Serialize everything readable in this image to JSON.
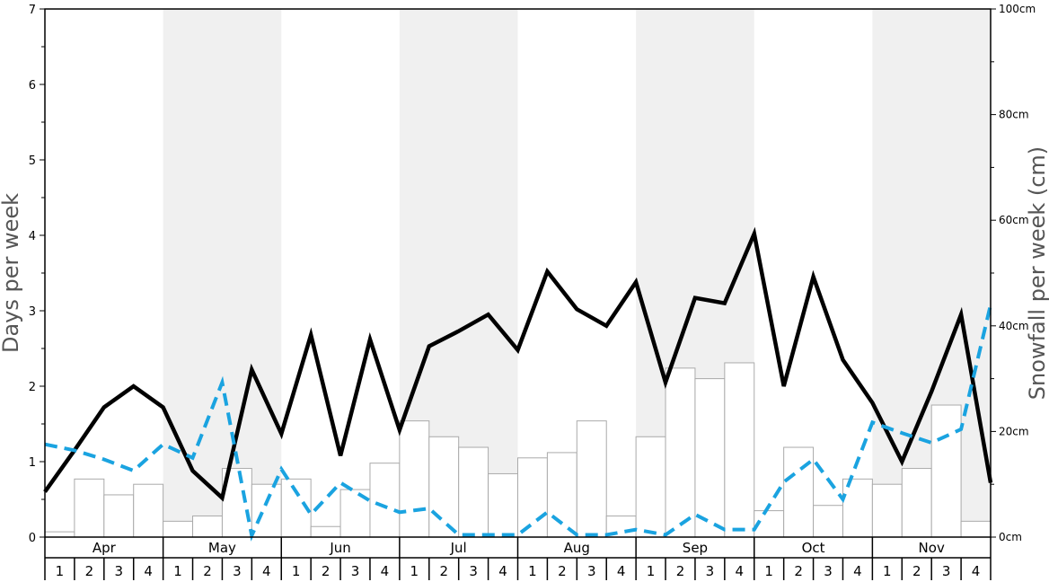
{
  "chart_data": {
    "type": "bar",
    "title": "",
    "ylabel_left": "Days per week",
    "ylabel_right": "Snowfall per week (cm)",
    "left_ylim": [
      0,
      7
    ],
    "left_yticks": [
      "0",
      "1",
      "2",
      "3",
      "4",
      "5",
      "6",
      "7"
    ],
    "right_ylim": [
      0,
      100
    ],
    "right_yticks": [
      "0cm",
      "20cm",
      "40cm",
      "60cm",
      "80cm",
      "100cm"
    ],
    "months": [
      "Apr",
      "May",
      "Jun",
      "Jul",
      "Aug",
      "Sep",
      "Oct",
      "Nov"
    ],
    "weeks_per_month": [
      "1",
      "2",
      "3",
      "4"
    ],
    "grid": false,
    "shading": "alternating-month",
    "series": [
      {
        "kind": "bar",
        "axis": "right",
        "units": "cm",
        "values": [
          1,
          11,
          8,
          10,
          3,
          4,
          13,
          10,
          11,
          2,
          9,
          14,
          22,
          19,
          17,
          12,
          15,
          16,
          22,
          4,
          19,
          32,
          30,
          33,
          5,
          17,
          6,
          11,
          10,
          13,
          25,
          3
        ]
      },
      {
        "kind": "line",
        "axis": "left",
        "style": "solid",
        "color": "#000000",
        "values": [
          0.6,
          1.15,
          1.72,
          2.0,
          1.72,
          0.88,
          0.52,
          2.22,
          1.37,
          2.68,
          1.08,
          2.62,
          1.42,
          2.53,
          2.73,
          2.95,
          2.48,
          3.52,
          3.02,
          2.8,
          3.38,
          2.05,
          3.17,
          3.1,
          4.02,
          2.0,
          3.45,
          2.35,
          1.78,
          1.0,
          1.93,
          2.95,
          0.72
        ]
      },
      {
        "kind": "line",
        "axis": "left",
        "style": "dashed",
        "color": "#1aa3e0",
        "values": [
          1.23,
          1.15,
          1.03,
          0.88,
          1.23,
          1.05,
          2.05,
          0.02,
          0.9,
          0.3,
          0.72,
          0.48,
          0.33,
          0.38,
          0.03,
          0.03,
          0.03,
          0.33,
          0.03,
          0.03,
          0.1,
          0.03,
          0.3,
          0.1,
          0.1,
          0.73,
          1.03,
          0.5,
          1.52,
          1.38,
          1.25,
          1.43,
          3.08
        ]
      }
    ]
  }
}
